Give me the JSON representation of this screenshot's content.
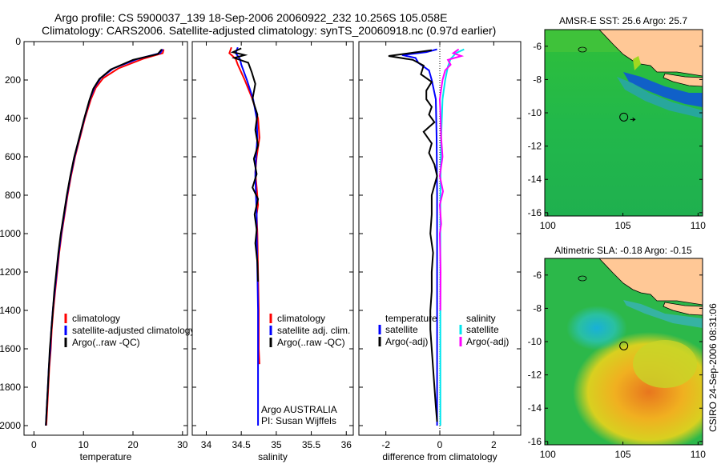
{
  "header": {
    "title_line1": "Argo profile: CS 5900037_139 18-Sep-2006 20060922_232 10.256S 105.058E",
    "title_line2": "Climatology: CARS2006. Satellite-adjusted climatology: synTS_20060918.nc (0.97d earlier)"
  },
  "side_label": "CSIRO 24-Sep-2006 08:31:06",
  "colors": {
    "climatology": "#ff0000",
    "satellite": "#0000ff",
    "argo": "#000000",
    "sal_satellite": "#00e5ee",
    "sal_argo": "#ff00ff",
    "land": "#ffc896",
    "ocean": "#22bb44"
  },
  "depth_axis": {
    "ylim": [
      0,
      2050
    ],
    "ticks": [
      "0",
      "200",
      "400",
      "600",
      "800",
      "1000",
      "1200",
      "1400",
      "1600",
      "1800",
      "2000"
    ]
  },
  "chart_data": [
    {
      "id": "temperature",
      "type": "line",
      "xlabel": "temperature",
      "xlim": [
        -2,
        31
      ],
      "xticks": [
        "0",
        "10",
        "20",
        "30"
      ],
      "xtick_values": [
        0,
        10,
        20,
        30
      ],
      "legend": [
        "climatology",
        "satellite-adjusted climatology",
        "Argo(..raw -QC)"
      ],
      "series": [
        {
          "name": "climatology",
          "color": "#ff0000",
          "points": [
            [
              26.2,
              40
            ],
            [
              26.0,
              60
            ],
            [
              22,
              90
            ],
            [
              17,
              140
            ],
            [
              14,
              190
            ],
            [
              12.5,
              240
            ],
            [
              11.5,
              300
            ],
            [
              10.3,
              400
            ],
            [
              9.3,
              500
            ],
            [
              8.3,
              600
            ],
            [
              7.5,
              700
            ],
            [
              6.8,
              800
            ],
            [
              6.2,
              900
            ],
            [
              5.6,
              1000
            ],
            [
              5.1,
              1100
            ],
            [
              4.7,
              1200
            ],
            [
              4.3,
              1300
            ],
            [
              3.9,
              1400
            ],
            [
              3.6,
              1500
            ],
            [
              3.4,
              1600
            ],
            [
              3.1,
              1700
            ],
            [
              2.9,
              1800
            ],
            [
              2.7,
              1900
            ],
            [
              2.5,
              2000
            ]
          ]
        },
        {
          "name": "satellite",
          "color": "#0000ff",
          "points": [
            [
              26.0,
              40
            ],
            [
              25.5,
              60
            ],
            [
              21,
              90
            ],
            [
              16,
              140
            ],
            [
              13.5,
              190
            ],
            [
              12.2,
              240
            ],
            [
              11.3,
              300
            ],
            [
              10.2,
              400
            ],
            [
              9.2,
              500
            ],
            [
              8.2,
              600
            ],
            [
              7.4,
              700
            ],
            [
              6.7,
              800
            ],
            [
              6.1,
              900
            ],
            [
              5.5,
              1000
            ],
            [
              5.0,
              1100
            ],
            [
              4.6,
              1200
            ],
            [
              4.2,
              1300
            ],
            [
              3.8,
              1400
            ],
            [
              3.5,
              1500
            ],
            [
              3.3,
              1600
            ],
            [
              3.0,
              1700
            ],
            [
              2.8,
              1800
            ],
            [
              2.6,
              1900
            ],
            [
              2.4,
              2000
            ]
          ]
        },
        {
          "name": "argo",
          "color": "#000000",
          "points": [
            [
              25.8,
              40
            ],
            [
              25.0,
              65
            ],
            [
              20,
              95
            ],
            [
              15.5,
              145
            ],
            [
              13.2,
              195
            ],
            [
              12.0,
              245
            ],
            [
              11.2,
              305
            ],
            [
              10.1,
              405
            ],
            [
              9.1,
              505
            ],
            [
              8.1,
              605
            ],
            [
              7.3,
              705
            ],
            [
              6.6,
              805
            ],
            [
              6.0,
              905
            ],
            [
              5.4,
              1005
            ],
            [
              4.9,
              1105
            ],
            [
              4.5,
              1205
            ],
            [
              4.1,
              1305
            ],
            [
              3.8,
              1405
            ],
            [
              3.5,
              1505
            ],
            [
              3.2,
              1605
            ],
            [
              3.0,
              1705
            ],
            [
              2.8,
              1805
            ],
            [
              2.6,
              1905
            ],
            [
              2.4,
              2000
            ]
          ]
        }
      ]
    },
    {
      "id": "salinity",
      "type": "line",
      "xlabel": "salinity",
      "xlim": [
        33.8,
        36.1
      ],
      "xticks": [
        "34",
        "34.5",
        "35",
        "35.5",
        "36"
      ],
      "xtick_values": [
        34,
        34.5,
        35,
        35.5,
        36
      ],
      "legend": [
        "climatology",
        "satellite adj. clim.",
        "Argo(..raw -QC)"
      ],
      "annotation": [
        "Argo AUSTRALIA",
        "PI: Susan Wijffels"
      ],
      "series": [
        {
          "name": "climatology",
          "color": "#ff0000",
          "points": [
            [
              34.36,
              30
            ],
            [
              34.33,
              60
            ],
            [
              34.42,
              90
            ],
            [
              34.45,
              120
            ],
            [
              34.55,
              200
            ],
            [
              34.66,
              300
            ],
            [
              34.74,
              400
            ],
            [
              34.76,
              500
            ],
            [
              34.72,
              600
            ],
            [
              34.7,
              680
            ],
            [
              34.72,
              760
            ],
            [
              34.74,
              850
            ],
            [
              34.72,
              900
            ],
            [
              34.73,
              1000
            ],
            [
              34.74,
              1200
            ],
            [
              34.75,
              1400
            ],
            [
              34.75,
              1600
            ],
            [
              34.76,
              1680
            ]
          ]
        },
        {
          "name": "satellite",
          "color": "#0000ff",
          "points": [
            [
              34.45,
              30
            ],
            [
              34.42,
              60
            ],
            [
              34.48,
              90
            ],
            [
              34.5,
              120
            ],
            [
              34.58,
              200
            ],
            [
              34.67,
              300
            ],
            [
              34.72,
              400
            ],
            [
              34.73,
              500
            ],
            [
              34.71,
              600
            ],
            [
              34.7,
              700
            ],
            [
              34.71,
              800
            ],
            [
              34.72,
              900
            ],
            [
              34.72,
              1000
            ],
            [
              34.73,
              1200
            ],
            [
              34.74,
              1400
            ],
            [
              34.74,
              1600
            ],
            [
              34.74,
              1800
            ],
            [
              34.74,
              2000
            ]
          ]
        },
        {
          "name": "argo",
          "color": "#000000",
          "points": [
            [
              34.5,
              35
            ],
            [
              34.38,
              55
            ],
            [
              34.55,
              70
            ],
            [
              34.4,
              85
            ],
            [
              34.6,
              110
            ],
            [
              34.65,
              160
            ],
            [
              34.7,
              220
            ],
            [
              34.66,
              300
            ],
            [
              34.73,
              380
            ],
            [
              34.7,
              460
            ],
            [
              34.74,
              540
            ],
            [
              34.68,
              610
            ],
            [
              34.72,
              690
            ],
            [
              34.66,
              760
            ],
            [
              34.74,
              820
            ],
            [
              34.69,
              900
            ],
            [
              34.72,
              980
            ],
            [
              34.7,
              1050
            ],
            [
              34.73,
              1150
            ],
            [
              34.74,
              1250
            ]
          ]
        }
      ]
    },
    {
      "id": "difference",
      "type": "line",
      "xlabel": "difference from climatology",
      "xlim": [
        -3.0,
        3.0
      ],
      "xticks": [
        "-2",
        "0",
        "2"
      ],
      "xtick_values": [
        -2,
        0,
        2
      ],
      "legend_left": {
        "title": "temperature",
        "items": [
          "satellite",
          "Argo(-adj)"
        ]
      },
      "legend_right": {
        "title": "salinity",
        "items": [
          "satellite",
          "Argo(-adj)"
        ]
      },
      "series": [
        {
          "name": "temp-satellite",
          "color": "#0000ff",
          "points": [
            [
              -0.1,
              40
            ],
            [
              -0.5,
              55
            ],
            [
              -1.4,
              70
            ],
            [
              -0.9,
              85
            ],
            [
              -0.8,
              110
            ],
            [
              -0.4,
              150
            ],
            [
              -0.3,
              200
            ],
            [
              -0.15,
              300
            ],
            [
              -0.12,
              500
            ],
            [
              -0.1,
              800
            ],
            [
              -0.1,
              1200
            ],
            [
              -0.1,
              1600
            ],
            [
              -0.1,
              2000
            ]
          ]
        },
        {
          "name": "temp-argo",
          "color": "#000000",
          "points": [
            [
              -0.3,
              45
            ],
            [
              -1.9,
              75
            ],
            [
              -1.0,
              95
            ],
            [
              -0.6,
              125
            ],
            [
              -0.7,
              170
            ],
            [
              -0.3,
              210
            ],
            [
              -0.5,
              255
            ],
            [
              -0.5,
              300
            ],
            [
              -0.3,
              340
            ],
            [
              -0.4,
              380
            ],
            [
              -0.2,
              420
            ],
            [
              -0.6,
              470
            ],
            [
              -0.3,
              530
            ],
            [
              -0.4,
              580
            ],
            [
              -0.2,
              640
            ],
            [
              -0.1,
              700
            ],
            [
              -0.3,
              800
            ],
            [
              -0.3,
              900
            ],
            [
              -0.35,
              1000
            ],
            [
              -0.25,
              1100
            ],
            [
              -0.3,
              1200
            ],
            [
              -0.3,
              1300
            ],
            [
              -0.35,
              1400
            ],
            [
              -0.35,
              1500
            ],
            [
              -0.3,
              1600
            ],
            [
              -0.25,
              1700
            ],
            [
              -0.2,
              1800
            ],
            [
              -0.15,
              1900
            ],
            [
              -0.1,
              1980
            ]
          ]
        },
        {
          "name": "sal-satellite",
          "color": "#00e5ee",
          "points": [
            [
              0.9,
              40
            ],
            [
              0.6,
              60
            ],
            [
              0.4,
              90
            ],
            [
              0.3,
              130
            ],
            [
              0.2,
              200
            ],
            [
              0.1,
              300
            ],
            [
              0.05,
              500
            ],
            [
              0.03,
              700
            ],
            [
              0.02,
              900
            ],
            [
              0.02,
              1200
            ],
            [
              0.02,
              1600
            ],
            [
              0.02,
              2000
            ]
          ]
        },
        {
          "name": "sal-argo",
          "color": "#ff00ff",
          "points": [
            [
              0.7,
              40
            ],
            [
              0.5,
              60
            ],
            [
              0.8,
              75
            ],
            [
              0.3,
              95
            ],
            [
              0.4,
              120
            ],
            [
              0.2,
              150
            ],
            [
              0.1,
              200
            ],
            [
              0.0,
              300
            ],
            [
              0.03,
              400
            ],
            [
              0.05,
              500
            ],
            [
              0.1,
              600
            ],
            [
              0.0,
              700
            ],
            [
              0.12,
              780
            ],
            [
              0.0,
              850
            ],
            [
              0.05,
              950
            ],
            [
              0.0,
              1000
            ],
            [
              0.03,
              1200
            ],
            [
              0.02,
              1400
            ]
          ]
        }
      ]
    }
  ],
  "maps": [
    {
      "id": "sst",
      "title": "AMSR-E SST: 25.6  Argo: 25.7",
      "yticks": [
        "-6",
        "-8",
        "-10",
        "-12",
        "-14",
        "-16"
      ],
      "ytick_values": [
        -6,
        -8,
        -10,
        -12,
        -14,
        -16
      ],
      "xticks": [
        "100",
        "105",
        "110"
      ],
      "xtick_values": [
        100,
        105,
        110
      ],
      "xlim": [
        99.8,
        110.3
      ],
      "ylim": [
        -16.2,
        -5.0
      ],
      "float": [
        105.058,
        -10.256
      ]
    },
    {
      "id": "sla",
      "title": "Altimetric SLA: -0.18  Argo: -0.15",
      "yticks": [
        "-6",
        "-8",
        "-10",
        "-12",
        "-14",
        "-16"
      ],
      "ytick_values": [
        -6,
        -8,
        -10,
        -12,
        -14,
        -16
      ],
      "xticks": [
        "100",
        "105",
        "110"
      ],
      "xtick_values": [
        100,
        105,
        110
      ],
      "xlim": [
        99.8,
        110.3
      ],
      "ylim": [
        -16.2,
        -5.0
      ],
      "float": [
        105.058,
        -10.256
      ]
    }
  ]
}
